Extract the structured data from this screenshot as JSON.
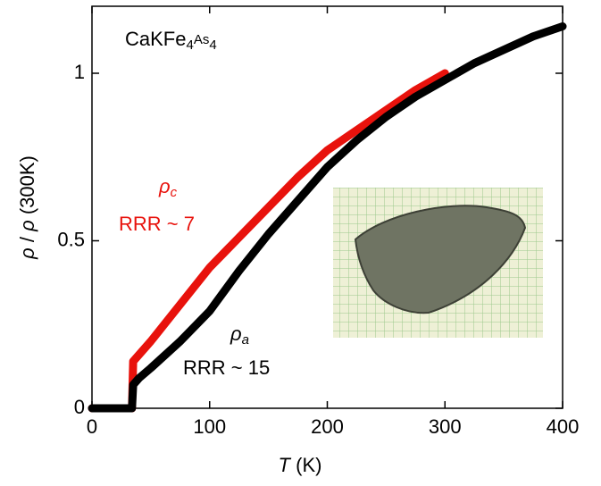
{
  "chart_data": {
    "type": "line",
    "title": "CaKFe4As4",
    "x_label": "T (K)",
    "y_label": "ρ / ρ (300K)",
    "x": [
      0,
      10,
      20,
      30,
      34,
      35,
      40,
      50,
      75,
      100,
      125,
      150,
      175,
      200,
      225,
      250,
      275,
      300,
      325,
      350,
      375,
      400
    ],
    "series": [
      {
        "name": "ρc",
        "color": "#e8120c",
        "values": [
          0,
          0,
          0,
          0,
          0,
          0.14,
          0.16,
          0.2,
          0.31,
          0.42,
          0.51,
          0.6,
          0.69,
          0.77,
          0.83,
          0.89,
          0.95,
          1.0,
          null,
          null,
          null,
          null
        ]
      },
      {
        "name": "ρa",
        "color": "#000000",
        "values": [
          0,
          0,
          0,
          0,
          0,
          0.07,
          0.09,
          0.12,
          0.2,
          0.29,
          0.41,
          0.52,
          0.62,
          0.72,
          0.8,
          0.87,
          0.93,
          0.98,
          1.03,
          1.07,
          1.11,
          1.14
        ]
      }
    ],
    "annotations": [
      "RRR ~ 7",
      "RRR ~ 15"
    ],
    "xlim": [
      0,
      400
    ],
    "xticks": [
      0,
      100,
      200,
      300,
      400
    ],
    "ylim": [
      0,
      1.2
    ],
    "yticks": [
      0,
      0.5,
      1
    ]
  }
}
